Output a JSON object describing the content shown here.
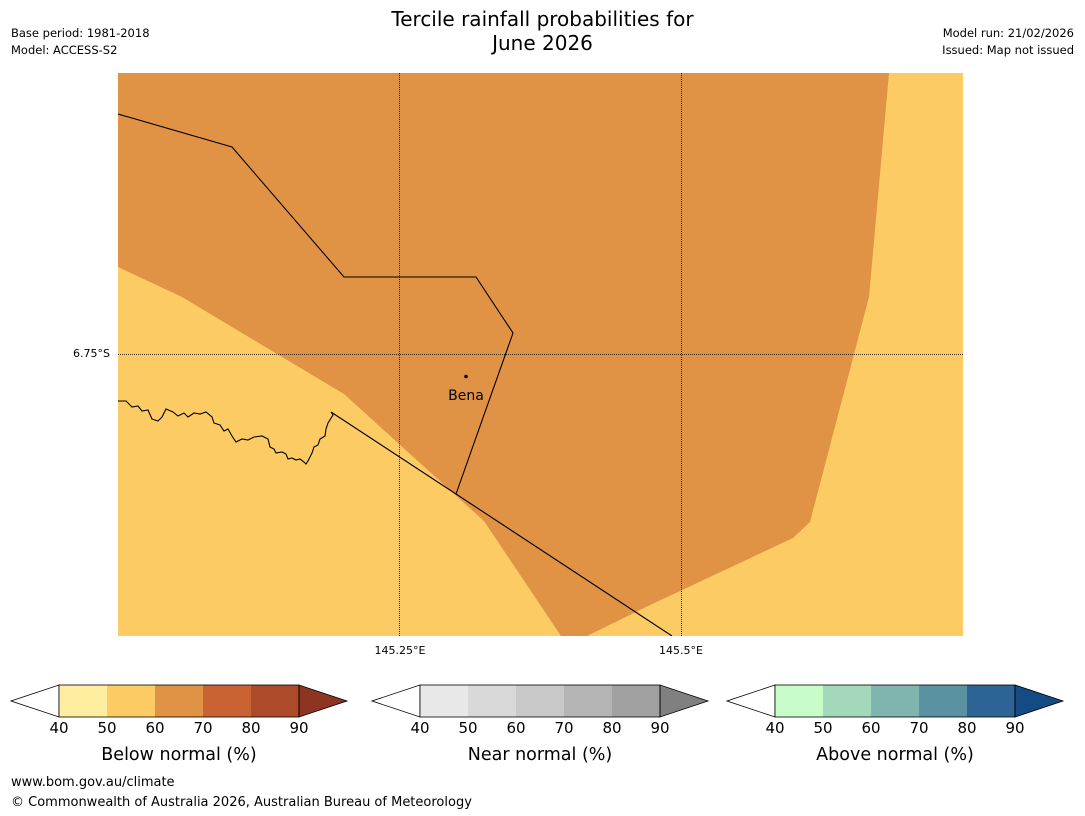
{
  "title_line1": "Tercile rainfall probabilities for",
  "title_line2": "June 2026",
  "meta_left": {
    "base_period": "Base period: 1981-2018",
    "model": "Model: ACCESS-S2"
  },
  "meta_right": {
    "model_run": "Model run: 21/02/2026",
    "issued": "Issued: Map not issued"
  },
  "map": {
    "lat_label": "6.75°S",
    "lon_labels": [
      "145.25°E",
      "145.5°E"
    ],
    "town": "Bena",
    "colors": {
      "below_50_60": "#fdcb64",
      "below_60_70": "#e09344"
    }
  },
  "colorbars": [
    {
      "name": "below",
      "title": "Below normal (%)",
      "ticks": [
        "40",
        "50",
        "60",
        "70",
        "80",
        "90"
      ],
      "colors": [
        "#ffee9f",
        "#fdcb64",
        "#e09344",
        "#c96333",
        "#ad4a29"
      ],
      "low_extend": "#ffffff",
      "high_extend": "#8d3522"
    },
    {
      "name": "near",
      "title": "Near normal (%)",
      "ticks": [
        "40",
        "50",
        "60",
        "70",
        "80",
        "90"
      ],
      "colors": [
        "#e8e8e8",
        "#d9d9d9",
        "#c8c8c8",
        "#b4b4b4",
        "#a0a0a0"
      ],
      "low_extend": "#ffffff",
      "high_extend": "#808080"
    },
    {
      "name": "above",
      "title": "Above normal (%)",
      "ticks": [
        "40",
        "50",
        "60",
        "70",
        "80",
        "90"
      ],
      "colors": [
        "#c8fcc8",
        "#a4d8bb",
        "#80b5af",
        "#5a92a2",
        "#2e6396"
      ],
      "low_extend": "#ffffff",
      "high_extend": "#144b85"
    }
  ],
  "footer": {
    "url": "www.bom.gov.au/climate",
    "copyright": "© Commonwealth of Australia 2026, Australian Bureau of Meteorology"
  }
}
